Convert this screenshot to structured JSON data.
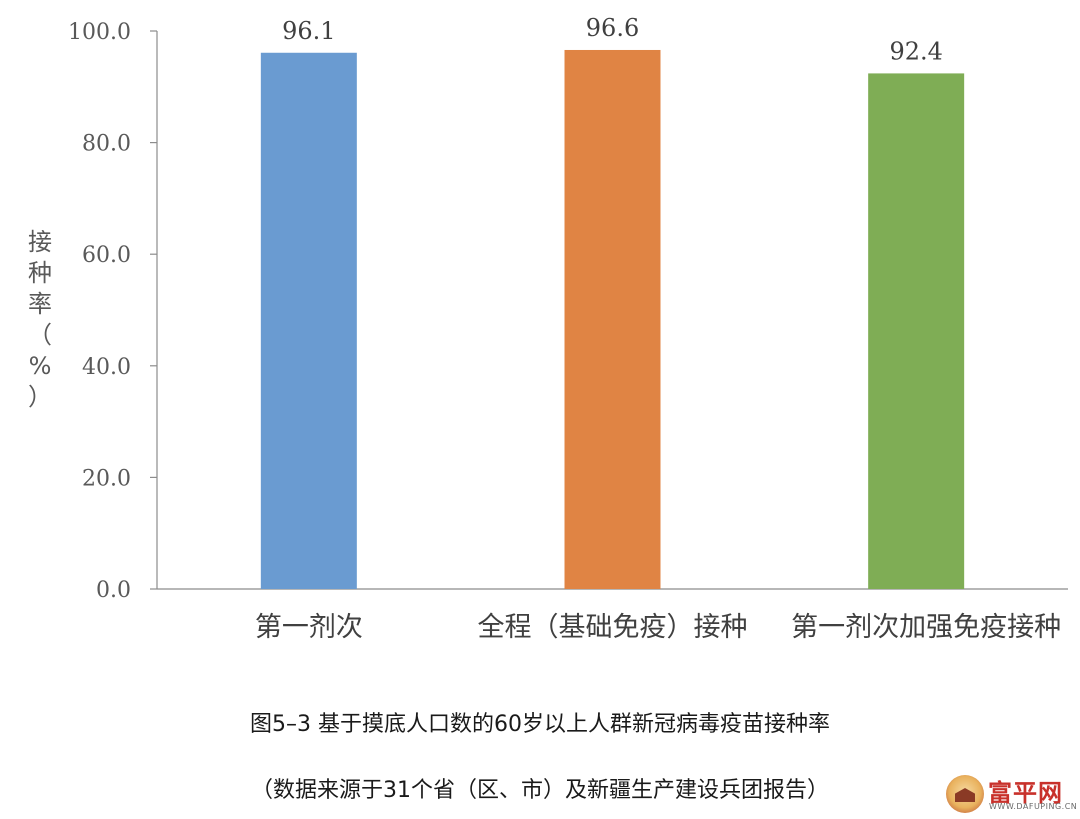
{
  "chart_data": {
    "type": "bar",
    "categories": [
      "第一剂次",
      "全程（基础免疫）接种",
      "第一剂次加强免疫接种"
    ],
    "values": [
      96.1,
      96.6,
      92.4
    ],
    "value_labels": [
      "96.1",
      "96.6",
      "92.4"
    ],
    "colors": [
      "#6a9bd1",
      "#e08444",
      "#7fad55"
    ],
    "ylabel": "接种率（%）",
    "ylim": [
      0,
      100
    ],
    "yticks": [
      0,
      20,
      40,
      60,
      80,
      100
    ],
    "ytick_labels": [
      "0.0",
      "20.0",
      "40.0",
      "60.0",
      "80.0",
      "100.0"
    ],
    "grid": false,
    "legend": "none"
  },
  "caption": {
    "title": "图5–3  基于摸底人口数的60岁以上人群新冠病毒疫苗接种率",
    "source": "（数据来源于31个省（区、市）及新疆生产建设兵团报告）"
  },
  "watermark": {
    "name": "富平网",
    "url": "WWW.DAFUPING.CN",
    "icon": "tower-logo-icon"
  }
}
